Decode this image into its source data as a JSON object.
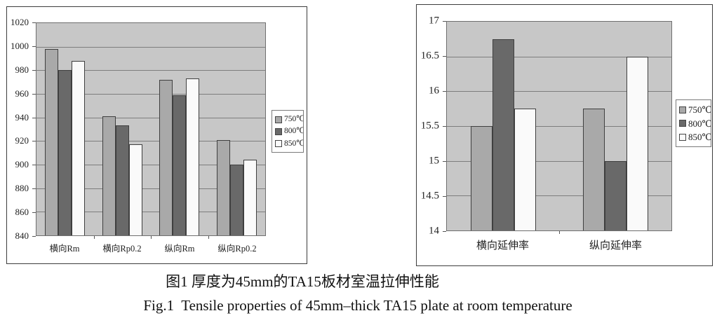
{
  "figure": {
    "caption_zh": "图1 厚度为45mm的TA15板材室温拉伸性能",
    "caption_en": "Fig.1  Tensile properties of 45mm–thick TA15 plate at room temperature"
  },
  "chart_data": [
    {
      "type": "bar",
      "title": "",
      "xlabel": "",
      "ylabel": "",
      "categories": [
        "横向Rm",
        "横向Rp0.2",
        "纵向Rm",
        "纵向Rp0.2"
      ],
      "series": [
        {
          "name": "750℃",
          "color": "#a9a9a9",
          "values": [
            998,
            941,
            972,
            921
          ]
        },
        {
          "name": "800℃",
          "color": "#696969",
          "values": [
            980,
            933,
            959,
            900
          ]
        },
        {
          "name": "850℃",
          "color": "#fafafa",
          "values": [
            988,
            917,
            973,
            904
          ]
        }
      ],
      "ylim": [
        840,
        1020
      ],
      "ytick_step": 20,
      "grid": true,
      "legend_position": "right"
    },
    {
      "type": "bar",
      "title": "",
      "xlabel": "",
      "ylabel": "",
      "categories": [
        "横向延伸率",
        "纵向延伸率"
      ],
      "series": [
        {
          "name": "750℃",
          "color": "#a9a9a9",
          "values": [
            15.5,
            15.75
          ]
        },
        {
          "name": "800℃",
          "color": "#696969",
          "values": [
            16.75,
            15
          ]
        },
        {
          "name": "850℃",
          "color": "#fafafa",
          "values": [
            15.75,
            16.5
          ]
        }
      ],
      "ylim": [
        14,
        17
      ],
      "ytick_step": 0.5,
      "grid": true,
      "legend_position": "right"
    }
  ]
}
